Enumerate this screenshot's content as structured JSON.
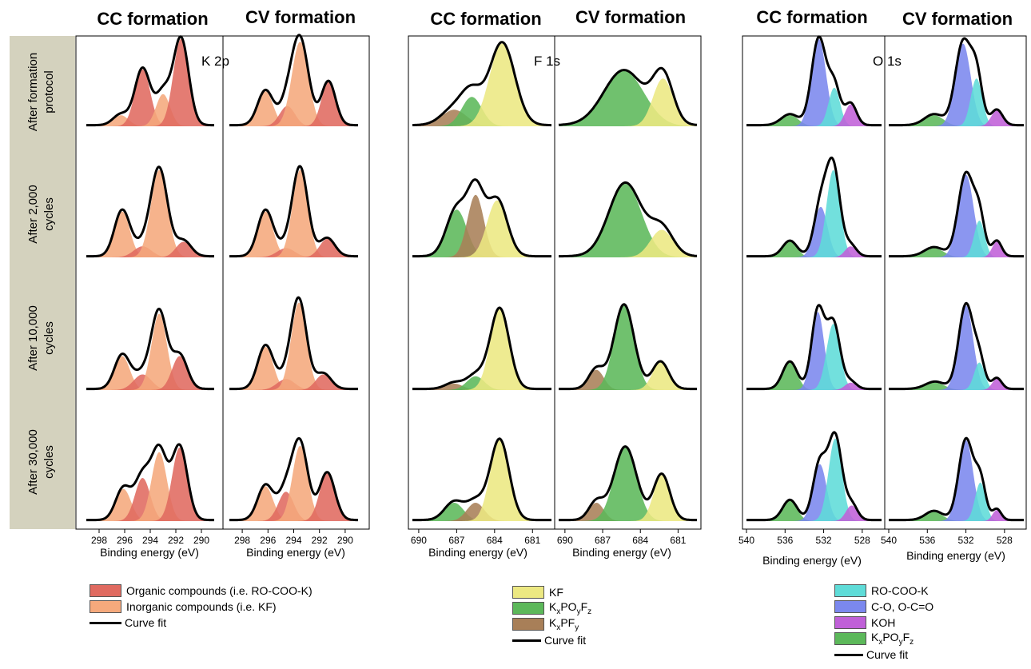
{
  "colors": {
    "organic": "#e06a60",
    "inorganic": "#f5a97c",
    "kf": "#ece882",
    "kxpoyfz": "#5cb85a",
    "kxpfy": "#a87f58",
    "rocook": "#5fdcd8",
    "co": "#7b88ee",
    "koh": "#c060d8",
    "o_kxpoyfz": "#5cb85a",
    "row_label_bg": "#d4d2be"
  },
  "row_labels": [
    [
      "After formation",
      "protocol"
    ],
    [
      "After 2,000",
      "cycles"
    ],
    [
      "After 10,000",
      "cycles"
    ],
    [
      "After 30,000",
      "cycles"
    ]
  ],
  "legends": {
    "k2p": {
      "organic": "Organic compounds (i.e. RO-COO-K)",
      "inorganic": "Inorganic compounds (i.e. KF)",
      "fit": "Curve fit"
    },
    "f1s": {
      "kf": "KF",
      "kxpoyfz": {
        "a": "K",
        "b": "x",
        "c": "PO",
        "d": "y",
        "e": "F",
        "f": "z"
      },
      "kxpfy": {
        "a": "K",
        "b": "x",
        "c": "PF",
        "d": "y"
      },
      "fit": "Curve fit"
    },
    "o1s": {
      "rocook": "RO-COO-K",
      "co": "C-O, O-C=O",
      "koh": "KOH",
      "kxpoyfz": {
        "a": "K",
        "b": "x",
        "c": "PO",
        "d": "y",
        "e": "F",
        "f": "z"
      },
      "fit": "Curve fit"
    }
  },
  "chart_data": [
    {
      "type": "area",
      "region": "K 2p",
      "columns": [
        "CC formation",
        "CV formation"
      ],
      "xlabel": "Binding energy (eV)",
      "xlim": [
        299,
        289
      ],
      "xticks": [
        "298",
        "296",
        "294",
        "292",
        "290"
      ],
      "xtick_values": [
        298,
        296,
        294,
        292,
        290
      ],
      "components": [
        "organic",
        "inorganic"
      ],
      "panels": [
        [
          {
            "peaks": [
              {
                "c": "inorganic",
                "mu": 296.3,
                "sigma": 0.6,
                "amp": 0.12
              },
              {
                "c": "organic",
                "mu": 294.6,
                "sigma": 0.6,
                "amp": 0.62
              },
              {
                "c": "inorganic",
                "mu": 293.0,
                "sigma": 0.55,
                "amp": 0.35
              },
              {
                "c": "organic",
                "mu": 291.6,
                "sigma": 0.6,
                "amp": 0.95
              }
            ]
          },
          {
            "peaks": [
              {
                "c": "inorganic",
                "mu": 296.2,
                "sigma": 0.6,
                "amp": 0.38
              },
              {
                "c": "organic",
                "mu": 294.5,
                "sigma": 0.6,
                "amp": 0.22
              },
              {
                "c": "inorganic",
                "mu": 293.5,
                "sigma": 0.65,
                "amp": 0.92
              },
              {
                "c": "organic",
                "mu": 291.3,
                "sigma": 0.55,
                "amp": 0.48
              }
            ]
          }
        ],
        [
          {
            "peaks": [
              {
                "c": "inorganic",
                "mu": 296.2,
                "sigma": 0.6,
                "amp": 0.5
              },
              {
                "c": "organic",
                "mu": 294.6,
                "sigma": 0.7,
                "amp": 0.12
              },
              {
                "c": "inorganic",
                "mu": 293.3,
                "sigma": 0.65,
                "amp": 0.95
              },
              {
                "c": "organic",
                "mu": 291.4,
                "sigma": 0.6,
                "amp": 0.17
              }
            ]
          },
          {
            "peaks": [
              {
                "c": "inorganic",
                "mu": 296.2,
                "sigma": 0.6,
                "amp": 0.5
              },
              {
                "c": "organic",
                "mu": 294.6,
                "sigma": 0.7,
                "amp": 0.1
              },
              {
                "c": "inorganic",
                "mu": 293.5,
                "sigma": 0.6,
                "amp": 0.95
              },
              {
                "c": "organic",
                "mu": 291.4,
                "sigma": 0.6,
                "amp": 0.2
              }
            ]
          }
        ],
        [
          {
            "peaks": [
              {
                "c": "inorganic",
                "mu": 296.2,
                "sigma": 0.6,
                "amp": 0.37
              },
              {
                "c": "organic",
                "mu": 294.6,
                "sigma": 0.7,
                "amp": 0.17
              },
              {
                "c": "inorganic",
                "mu": 293.3,
                "sigma": 0.6,
                "amp": 0.83
              },
              {
                "c": "organic",
                "mu": 291.7,
                "sigma": 0.6,
                "amp": 0.37
              }
            ]
          },
          {
            "peaks": [
              {
                "c": "inorganic",
                "mu": 296.2,
                "sigma": 0.6,
                "amp": 0.47
              },
              {
                "c": "organic",
                "mu": 294.6,
                "sigma": 0.7,
                "amp": 0.12
              },
              {
                "c": "inorganic",
                "mu": 293.6,
                "sigma": 0.6,
                "amp": 0.95
              },
              {
                "c": "organic",
                "mu": 291.7,
                "sigma": 0.6,
                "amp": 0.17
              }
            ]
          }
        ],
        [
          {
            "peaks": [
              {
                "c": "inorganic",
                "mu": 296.1,
                "sigma": 0.6,
                "amp": 0.35
              },
              {
                "c": "organic",
                "mu": 294.6,
                "sigma": 0.6,
                "amp": 0.47
              },
              {
                "c": "inorganic",
                "mu": 293.3,
                "sigma": 0.6,
                "amp": 0.75
              },
              {
                "c": "organic",
                "mu": 291.7,
                "sigma": 0.6,
                "amp": 0.8
              }
            ]
          },
          {
            "peaks": [
              {
                "c": "inorganic",
                "mu": 296.2,
                "sigma": 0.6,
                "amp": 0.38
              },
              {
                "c": "organic",
                "mu": 294.6,
                "sigma": 0.6,
                "amp": 0.32
              },
              {
                "c": "inorganic",
                "mu": 293.5,
                "sigma": 0.6,
                "amp": 0.82
              },
              {
                "c": "organic",
                "mu": 291.4,
                "sigma": 0.6,
                "amp": 0.52
              }
            ]
          }
        ]
      ]
    },
    {
      "type": "area",
      "region": "F 1s",
      "columns": [
        "CC formation",
        "CV formation"
      ],
      "xlabel": "Binding energy (eV)",
      "xlim": [
        690.5,
        679.5
      ],
      "xticks": [
        "690",
        "687",
        "684",
        "681"
      ],
      "xtick_values": [
        690,
        687,
        684,
        681
      ],
      "components": [
        "kf",
        "kxpoyfz",
        "kxpfy"
      ],
      "panels": [
        [
          {
            "peaks": [
              {
                "c": "kxpfy",
                "mu": 687.2,
                "sigma": 1.0,
                "amp": 0.18
              },
              {
                "c": "kxpoyfz",
                "mu": 685.8,
                "sigma": 0.8,
                "amp": 0.32
              },
              {
                "c": "kf",
                "mu": 683.4,
                "sigma": 1.0,
                "amp": 0.9
              }
            ]
          },
          {
            "peaks": [
              {
                "c": "kxpoyfz",
                "mu": 685.3,
                "sigma": 1.6,
                "amp": 0.6
              },
              {
                "c": "kf",
                "mu": 682.2,
                "sigma": 0.8,
                "amp": 0.52
              }
            ]
          }
        ],
        [
          {
            "peaks": [
              {
                "c": "kxpoyfz",
                "mu": 687.0,
                "sigma": 0.8,
                "amp": 0.52
              },
              {
                "c": "kxpfy",
                "mu": 685.5,
                "sigma": 0.65,
                "amp": 0.68
              },
              {
                "c": "kf",
                "mu": 683.8,
                "sigma": 0.8,
                "amp": 0.62
              }
            ]
          },
          {
            "peaks": [
              {
                "c": "kxpoyfz",
                "mu": 685.2,
                "sigma": 1.3,
                "amp": 0.8
              },
              {
                "c": "kf",
                "mu": 682.3,
                "sigma": 0.9,
                "amp": 0.3
              }
            ]
          }
        ],
        [
          {
            "peaks": [
              {
                "c": "kxpfy",
                "mu": 687.2,
                "sigma": 0.7,
                "amp": 0.07
              },
              {
                "c": "kxpoyfz",
                "mu": 685.5,
                "sigma": 0.7,
                "amp": 0.15
              },
              {
                "c": "kf",
                "mu": 683.6,
                "sigma": 0.75,
                "amp": 0.88
              }
            ]
          },
          {
            "peaks": [
              {
                "c": "kxpfy",
                "mu": 687.5,
                "sigma": 0.6,
                "amp": 0.22
              },
              {
                "c": "kxpoyfz",
                "mu": 685.3,
                "sigma": 0.8,
                "amp": 0.92
              },
              {
                "c": "kf",
                "mu": 682.4,
                "sigma": 0.65,
                "amp": 0.3
              }
            ]
          }
        ],
        [
          {
            "peaks": [
              {
                "c": "kxpoyfz",
                "mu": 687.2,
                "sigma": 0.75,
                "amp": 0.2
              },
              {
                "c": "kxpfy",
                "mu": 685.5,
                "sigma": 0.7,
                "amp": 0.2
              },
              {
                "c": "kf",
                "mu": 683.6,
                "sigma": 0.75,
                "amp": 0.88
              }
            ]
          },
          {
            "peaks": [
              {
                "c": "kxpfy",
                "mu": 687.5,
                "sigma": 0.6,
                "amp": 0.2
              },
              {
                "c": "kxpoyfz",
                "mu": 685.2,
                "sigma": 0.9,
                "amp": 0.8
              },
              {
                "c": "kf",
                "mu": 682.3,
                "sigma": 0.65,
                "amp": 0.5
              }
            ]
          }
        ]
      ]
    },
    {
      "type": "area",
      "region": "O 1s",
      "columns": [
        "CC formation",
        "CV formation"
      ],
      "xlabel": "Binding energy (eV)",
      "xlim": [
        540,
        526
      ],
      "xticks": [
        "540",
        "536",
        "532",
        "528"
      ],
      "xtick_values": [
        540,
        536,
        532,
        528
      ],
      "components": [
        "rocook",
        "co",
        "koh",
        "o_kxpoyfz"
      ],
      "panels": [
        [
          {
            "peaks": [
              {
                "c": "o_kxpoyfz",
                "mu": 535.5,
                "sigma": 0.9,
                "amp": 0.12
              },
              {
                "c": "co",
                "mu": 532.5,
                "sigma": 0.75,
                "amp": 0.95
              },
              {
                "c": "rocook",
                "mu": 530.9,
                "sigma": 0.6,
                "amp": 0.42
              },
              {
                "c": "koh",
                "mu": 529.2,
                "sigma": 0.6,
                "amp": 0.24
              }
            ]
          },
          {
            "peaks": [
              {
                "c": "o_kxpoyfz",
                "mu": 535.3,
                "sigma": 1.0,
                "amp": 0.12
              },
              {
                "c": "co",
                "mu": 532.3,
                "sigma": 0.8,
                "amp": 0.9
              },
              {
                "c": "rocook",
                "mu": 530.9,
                "sigma": 0.6,
                "amp": 0.52
              },
              {
                "c": "koh",
                "mu": 528.8,
                "sigma": 0.6,
                "amp": 0.17
              }
            ]
          }
        ],
        [
          {
            "peaks": [
              {
                "c": "o_kxpoyfz",
                "mu": 535.5,
                "sigma": 0.75,
                "amp": 0.17
              },
              {
                "c": "co",
                "mu": 532.3,
                "sigma": 0.7,
                "amp": 0.55
              },
              {
                "c": "rocook",
                "mu": 531.0,
                "sigma": 0.7,
                "amp": 0.95
              },
              {
                "c": "koh",
                "mu": 529.2,
                "sigma": 0.6,
                "amp": 0.12
              }
            ]
          },
          {
            "peaks": [
              {
                "c": "o_kxpoyfz",
                "mu": 535.3,
                "sigma": 1.0,
                "amp": 0.1
              },
              {
                "c": "co",
                "mu": 532.0,
                "sigma": 0.8,
                "amp": 0.9
              },
              {
                "c": "rocook",
                "mu": 530.6,
                "sigma": 0.55,
                "amp": 0.4
              },
              {
                "c": "koh",
                "mu": 528.8,
                "sigma": 0.5,
                "amp": 0.17
              }
            ]
          }
        ],
        [
          {
            "peaks": [
              {
                "c": "o_kxpoyfz",
                "mu": 535.5,
                "sigma": 0.75,
                "amp": 0.3
              },
              {
                "c": "co",
                "mu": 532.6,
                "sigma": 0.65,
                "amp": 0.85
              },
              {
                "c": "rocook",
                "mu": 531.0,
                "sigma": 0.7,
                "amp": 0.72
              },
              {
                "c": "koh",
                "mu": 529.2,
                "sigma": 0.6,
                "amp": 0.08
              }
            ]
          },
          {
            "peaks": [
              {
                "c": "o_kxpoyfz",
                "mu": 535.2,
                "sigma": 1.0,
                "amp": 0.08
              },
              {
                "c": "co",
                "mu": 532.0,
                "sigma": 0.75,
                "amp": 0.92
              },
              {
                "c": "rocook",
                "mu": 530.6,
                "sigma": 0.55,
                "amp": 0.3
              },
              {
                "c": "koh",
                "mu": 528.8,
                "sigma": 0.5,
                "amp": 0.12
              }
            ]
          }
        ],
        [
          {
            "peaks": [
              {
                "c": "o_kxpoyfz",
                "mu": 535.5,
                "sigma": 0.75,
                "amp": 0.22
              },
              {
                "c": "co",
                "mu": 532.4,
                "sigma": 0.7,
                "amp": 0.62
              },
              {
                "c": "rocook",
                "mu": 530.8,
                "sigma": 0.7,
                "amp": 0.9
              },
              {
                "c": "koh",
                "mu": 529.1,
                "sigma": 0.6,
                "amp": 0.17
              }
            ]
          },
          {
            "peaks": [
              {
                "c": "o_kxpoyfz",
                "mu": 535.3,
                "sigma": 0.9,
                "amp": 0.1
              },
              {
                "c": "co",
                "mu": 532.0,
                "sigma": 0.75,
                "amp": 0.88
              },
              {
                "c": "rocook",
                "mu": 530.5,
                "sigma": 0.55,
                "amp": 0.42
              },
              {
                "c": "koh",
                "mu": 528.8,
                "sigma": 0.45,
                "amp": 0.12
              }
            ]
          }
        ]
      ]
    }
  ]
}
